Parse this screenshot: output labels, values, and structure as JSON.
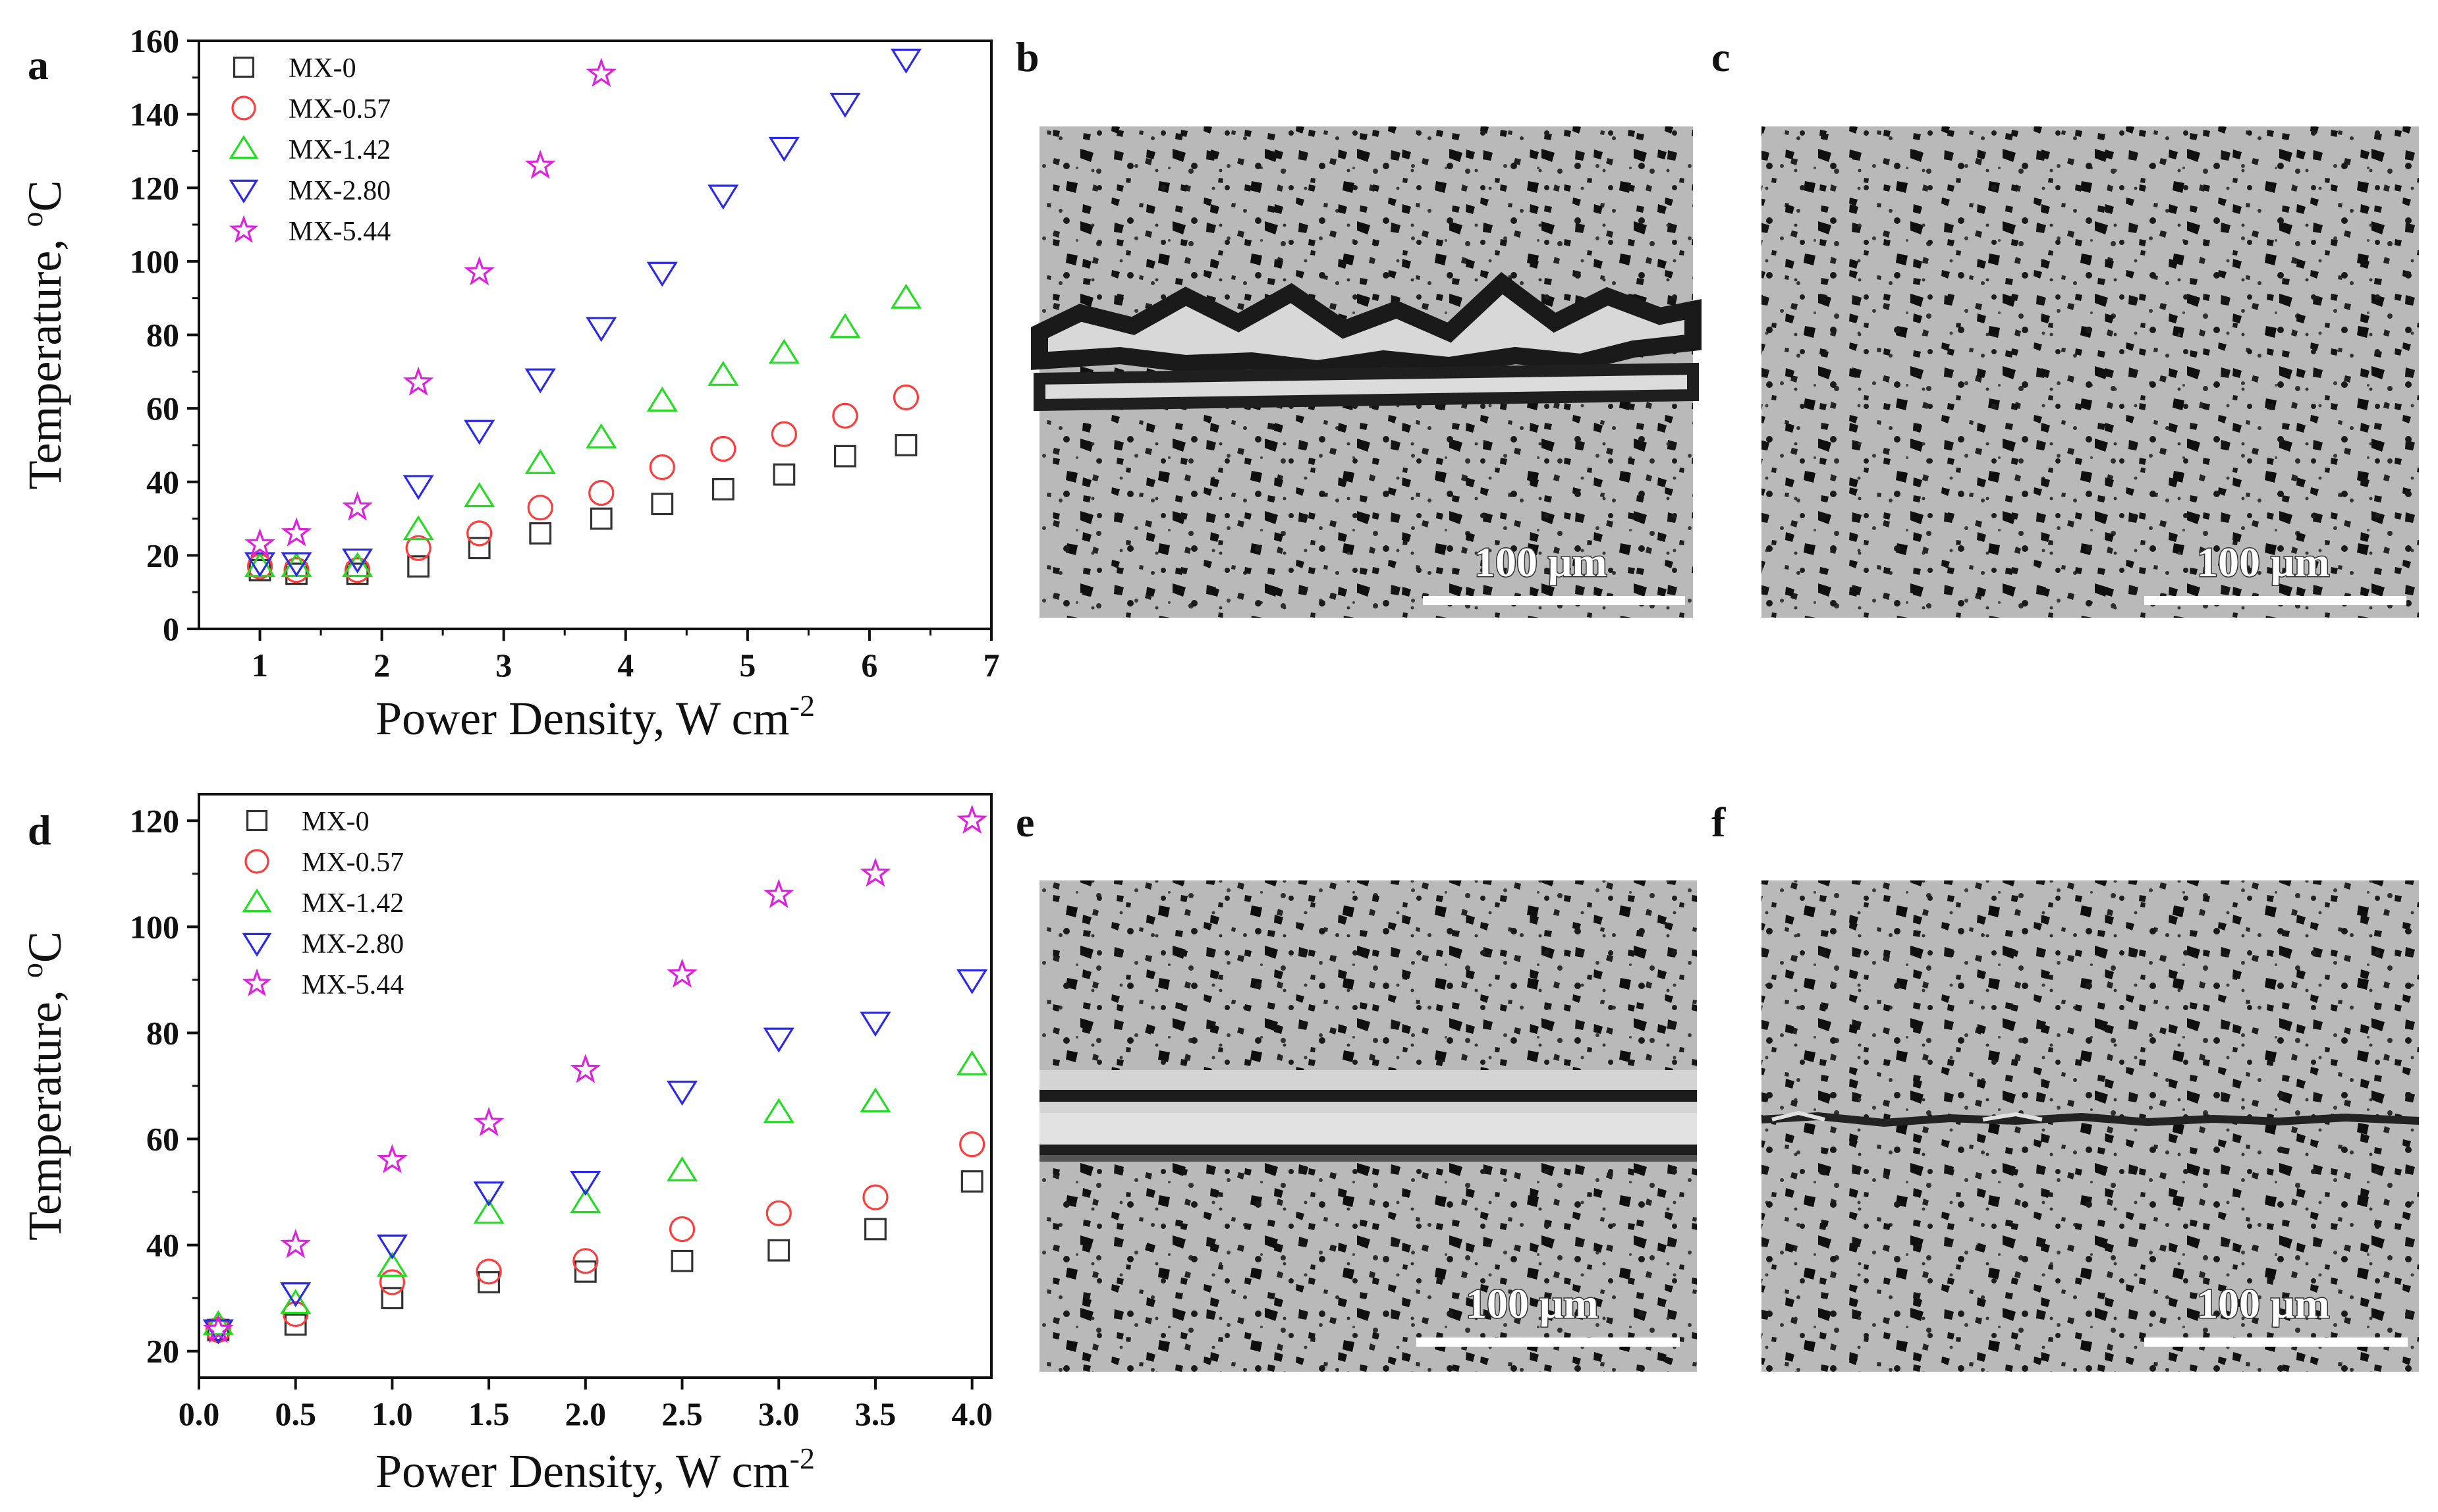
{
  "panels": {
    "a": "a",
    "b": "b",
    "c": "c",
    "d": "d",
    "e": "e",
    "f": "f"
  },
  "colors": {
    "MX-0": "#333333",
    "MX-0.57": "#ff3b3b",
    "MX-1.42": "#22dd22",
    "MX-2.80": "#2a2ae8",
    "MX-5.44": "#e020e0"
  },
  "micrographs": [
    {
      "panel": "b",
      "scale_label": "100 μm",
      "feature": "crack-wide"
    },
    {
      "panel": "c",
      "scale_label": "100 μm",
      "feature": "none"
    },
    {
      "panel": "e",
      "scale_label": "100 μm",
      "feature": "crack-straight"
    },
    {
      "panel": "f",
      "scale_label": "100 μm",
      "feature": "crack-healed"
    }
  ],
  "chart_data": [
    {
      "panel": "a",
      "type": "scatter",
      "xlabel": "Power Density, W cm",
      "xlabel_sup": "-2",
      "ylabel": "Temperature, ",
      "ylabel_sup": "o",
      "ylabel_unit": "C",
      "xlim": [
        0.5,
        7
      ],
      "ylim": [
        0,
        160
      ],
      "xticks": [
        1,
        2,
        3,
        4,
        5,
        6,
        7
      ],
      "xtick_labels": [
        "1",
        "2",
        "3",
        "4",
        "5",
        "6",
        "7"
      ],
      "yticks": [
        0,
        20,
        40,
        60,
        80,
        100,
        120,
        140,
        160
      ],
      "ytick_labels": [
        "0",
        "20",
        "40",
        "60",
        "80",
        "100",
        "120",
        "140",
        "160"
      ],
      "legend_position": "top-left",
      "series": [
        {
          "name": "MX-0",
          "marker": "square",
          "x": [
            1.0,
            1.3,
            1.8,
            2.3,
            2.8,
            3.3,
            3.8,
            4.3,
            4.8,
            5.3,
            5.8,
            6.3
          ],
          "y": [
            16,
            15,
            15,
            17,
            22,
            26,
            30,
            34,
            38,
            42,
            47,
            50
          ]
        },
        {
          "name": "MX-0.57",
          "marker": "circle",
          "x": [
            1.0,
            1.3,
            1.8,
            2.3,
            2.8,
            3.3,
            3.8,
            4.3,
            4.8,
            5.3,
            5.8,
            6.3
          ],
          "y": [
            17,
            16,
            16,
            22,
            26,
            33,
            37,
            44,
            49,
            53,
            58,
            63
          ]
        },
        {
          "name": "MX-1.42",
          "marker": "triangle-up",
          "x": [
            1.0,
            1.3,
            1.8,
            2.3,
            2.8,
            3.3,
            3.8,
            4.3,
            4.8,
            5.3,
            5.8,
            6.3
          ],
          "y": [
            17,
            17,
            17,
            27,
            36,
            45,
            52,
            62,
            69,
            75,
            82,
            90
          ]
        },
        {
          "name": "MX-2.80",
          "marker": "triangle-down",
          "x": [
            1.0,
            1.3,
            1.8,
            2.3,
            2.8,
            3.3,
            3.8,
            4.3,
            4.8,
            5.3,
            5.8,
            6.3
          ],
          "y": [
            18,
            18,
            19,
            39,
            54,
            68,
            82,
            97,
            118,
            131,
            143,
            155
          ]
        },
        {
          "name": "MX-5.44",
          "marker": "star",
          "x": [
            1.0,
            1.3,
            1.8,
            2.3,
            2.8,
            3.3,
            3.8
          ],
          "y": [
            23,
            26,
            33,
            67,
            97,
            126,
            151
          ]
        }
      ]
    },
    {
      "panel": "d",
      "type": "scatter",
      "xlabel": "Power Density, W cm",
      "xlabel_sup": "-2",
      "ylabel": "Temperature, ",
      "ylabel_sup": "o",
      "ylabel_unit": "C",
      "xlim": [
        0,
        4.1
      ],
      "ylim": [
        15,
        125
      ],
      "xticks": [
        0,
        0.5,
        1.0,
        1.5,
        2.0,
        2.5,
        3.0,
        3.5,
        4.0
      ],
      "xtick_labels": [
        "0.0",
        "0.5",
        "1.0",
        "1.5",
        "2.0",
        "2.5",
        "3.0",
        "3.5",
        "4.0"
      ],
      "yticks": [
        20,
        40,
        60,
        80,
        100,
        120
      ],
      "ytick_labels": [
        "20",
        "40",
        "60",
        "80",
        "100",
        "120"
      ],
      "legend_position": "top-left",
      "series": [
        {
          "name": "MX-0",
          "marker": "square",
          "x": [
            0.1,
            0.5,
            1.0,
            1.5,
            2.0,
            2.5,
            3.0,
            3.5,
            4.0
          ],
          "y": [
            24,
            25,
            30,
            33,
            35,
            37,
            39,
            43,
            52
          ]
        },
        {
          "name": "MX-0.57",
          "marker": "circle",
          "x": [
            0.1,
            0.5,
            1.0,
            1.5,
            2.0,
            2.5,
            3.0,
            3.5,
            4.0
          ],
          "y": [
            24,
            27,
            33,
            35,
            37,
            43,
            46,
            49,
            59
          ]
        },
        {
          "name": "MX-1.42",
          "marker": "triangle-up",
          "x": [
            0.1,
            0.5,
            1.0,
            1.5,
            2.0,
            2.5,
            3.0,
            3.5,
            4.0
          ],
          "y": [
            25,
            29,
            36,
            46,
            48,
            54,
            65,
            67,
            74
          ]
        },
        {
          "name": "MX-2.80",
          "marker": "triangle-down",
          "x": [
            0.1,
            0.5,
            1.0,
            1.5,
            2.0,
            2.5,
            3.0,
            3.5,
            4.0
          ],
          "y": [
            24,
            31,
            40,
            50,
            52,
            69,
            79,
            82,
            90
          ]
        },
        {
          "name": "MX-5.44",
          "marker": "star",
          "x": [
            0.1,
            0.5,
            1.0,
            1.5,
            2.0,
            2.5,
            3.0,
            3.5,
            4.0
          ],
          "y": [
            24,
            40,
            56,
            63,
            73,
            91,
            106,
            110,
            120
          ]
        }
      ]
    }
  ]
}
